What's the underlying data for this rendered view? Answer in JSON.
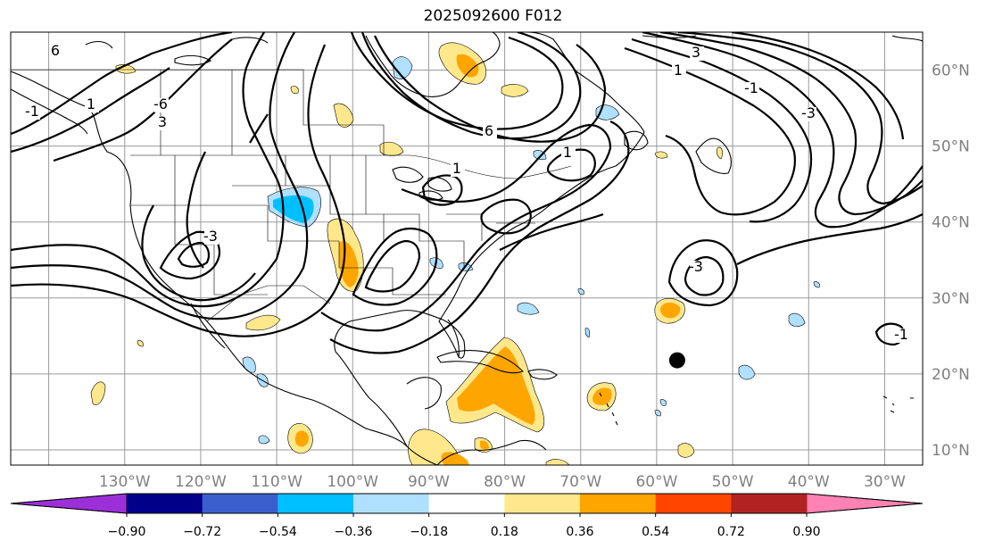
{
  "title": "2025092600 F012",
  "map": {
    "lon_range": [
      -145,
      -25
    ],
    "lat_range": [
      8,
      65
    ],
    "lat_labels": [
      "60°N",
      "50°N",
      "40°N",
      "30°N",
      "20°N",
      "10°N"
    ],
    "lon_labels": [
      "130°W",
      "120°W",
      "110°W",
      "100°W",
      "90°W",
      "80°W",
      "70°W",
      "60°W",
      "50°W",
      "40°W",
      "30°W"
    ],
    "contour_labels": [
      "6",
      "-6",
      "1",
      "-1",
      "3",
      "-3",
      "6",
      "1",
      "1",
      "-3",
      "3",
      "1",
      "-1",
      "-3",
      "-1"
    ],
    "marker": {
      "name": "storm-position-dot",
      "lon": -57.3,
      "lat": 21.8
    }
  },
  "colorbar": {
    "tick_labels": [
      "−0.90",
      "−0.72",
      "−0.54",
      "−0.36",
      "−0.18",
      "0.18",
      "0.36",
      "0.54",
      "0.72",
      "0.90"
    ],
    "colors": {
      "under": "#9b30d9",
      "bins": [
        "#9b30d9",
        "#00008b",
        "#3a5fcd",
        "#00bfff",
        "#b0e0ff",
        "#ffffff",
        "#ffe88c",
        "#ffa500",
        "#ff4500",
        "#b22222",
        "#ff82b4"
      ],
      "over": "#ff82b4"
    }
  }
}
